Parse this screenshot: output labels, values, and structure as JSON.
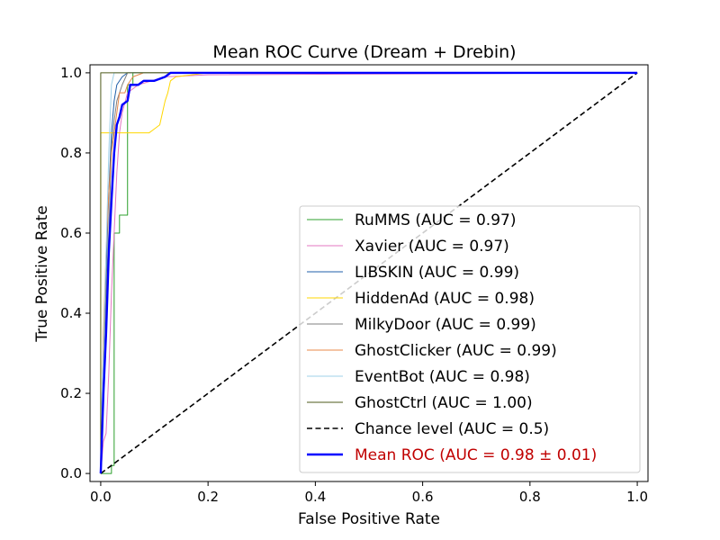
{
  "chart_data": {
    "type": "line",
    "title": "Mean ROC Curve (Dream + Drebin)",
    "xlabel": "False Positive Rate",
    "ylabel": "True Positive Rate",
    "xlim": [
      -0.02,
      1.02
    ],
    "ylim": [
      -0.02,
      1.02
    ],
    "xticks": [
      "0.0",
      "0.2",
      "0.4",
      "0.6",
      "0.8",
      "1.0"
    ],
    "yticks": [
      "0.0",
      "0.2",
      "0.4",
      "0.6",
      "0.8",
      "1.0"
    ],
    "grid": false,
    "legend_position": "lower-right",
    "series": [
      {
        "name": "RuMMS (AUC = 0.97)",
        "color": "#2ca02c",
        "width": 1,
        "style": "solid",
        "points": [
          [
            0,
            0
          ],
          [
            0.02,
            0
          ],
          [
            0.02,
            0.02
          ],
          [
            0.025,
            0.02
          ],
          [
            0.025,
            0.6
          ],
          [
            0.035,
            0.6
          ],
          [
            0.035,
            0.645
          ],
          [
            0.05,
            0.645
          ],
          [
            0.05,
            0.97
          ],
          [
            0.06,
            0.97
          ],
          [
            0.06,
            1.0
          ],
          [
            1.0,
            1.0
          ]
        ]
      },
      {
        "name": "Xavier (AUC = 0.97)",
        "color": "#e377c2",
        "width": 1,
        "style": "solid",
        "points": [
          [
            0,
            0
          ],
          [
            0.005,
            0.08
          ],
          [
            0.01,
            0.1
          ],
          [
            0.015,
            0.25
          ],
          [
            0.02,
            0.45
          ],
          [
            0.025,
            0.6
          ],
          [
            0.03,
            0.75
          ],
          [
            0.035,
            0.85
          ],
          [
            0.04,
            0.9
          ],
          [
            0.05,
            0.95
          ],
          [
            0.07,
            0.97
          ],
          [
            0.12,
            0.99
          ],
          [
            0.2,
            0.995
          ],
          [
            1.0,
            1.0
          ]
        ]
      },
      {
        "name": "LIBSKIN (AUC = 0.99)",
        "color": "#1f5fa8",
        "width": 1,
        "style": "solid",
        "points": [
          [
            0,
            0
          ],
          [
            0.005,
            0.3
          ],
          [
            0.01,
            0.5
          ],
          [
            0.015,
            0.7
          ],
          [
            0.02,
            0.85
          ],
          [
            0.025,
            0.93
          ],
          [
            0.03,
            0.97
          ],
          [
            0.04,
            0.99
          ],
          [
            0.05,
            1.0
          ],
          [
            1.0,
            1.0
          ]
        ]
      },
      {
        "name": "HiddenAd (AUC = 0.98)",
        "color": "#ffd700",
        "width": 1,
        "style": "solid",
        "points": [
          [
            0,
            0
          ],
          [
            0,
            0.85
          ],
          [
            0.09,
            0.85
          ],
          [
            0.1,
            0.86
          ],
          [
            0.11,
            0.87
          ],
          [
            0.115,
            0.9
          ],
          [
            0.12,
            0.93
          ],
          [
            0.125,
            0.95
          ],
          [
            0.13,
            0.98
          ],
          [
            0.14,
            0.99
          ],
          [
            0.2,
            1.0
          ],
          [
            1.0,
            1.0
          ]
        ]
      },
      {
        "name": "MilkyDoor (AUC = 0.99)",
        "color": "#7f7f7f",
        "width": 1,
        "style": "solid",
        "points": [
          [
            0,
            0
          ],
          [
            0.005,
            0.2
          ],
          [
            0.01,
            0.45
          ],
          [
            0.015,
            0.6
          ],
          [
            0.02,
            0.81
          ],
          [
            0.025,
            0.88
          ],
          [
            0.03,
            0.93
          ],
          [
            0.04,
            0.97
          ],
          [
            0.05,
            1.0
          ],
          [
            1.0,
            1.0
          ]
        ]
      },
      {
        "name": "GhostClicker (AUC = 0.99)",
        "color": "#e8894a",
        "width": 1,
        "style": "solid",
        "points": [
          [
            0,
            0
          ],
          [
            0.005,
            0.35
          ],
          [
            0.01,
            0.55
          ],
          [
            0.015,
            0.7
          ],
          [
            0.02,
            0.8
          ],
          [
            0.03,
            0.9
          ],
          [
            0.035,
            0.95
          ],
          [
            0.045,
            0.95
          ],
          [
            0.05,
            0.97
          ],
          [
            0.06,
            0.99
          ],
          [
            0.08,
            1.0
          ],
          [
            1.0,
            1.0
          ]
        ]
      },
      {
        "name": "EventBot (AUC = 0.98)",
        "color": "#9fd0e8",
        "width": 1,
        "style": "solid",
        "points": [
          [
            0,
            0
          ],
          [
            0,
            0.1
          ],
          [
            0.005,
            0.3
          ],
          [
            0.01,
            0.55
          ],
          [
            0.015,
            0.8
          ],
          [
            0.02,
            0.97
          ],
          [
            0.025,
            1.0
          ],
          [
            1.0,
            1.0
          ]
        ]
      },
      {
        "name": "GhostCtrl (AUC = 1.00)",
        "color": "#4d5a1a",
        "width": 1,
        "style": "solid",
        "points": [
          [
            0,
            0
          ],
          [
            0,
            1.0
          ],
          [
            1.0,
            1.0
          ]
        ]
      },
      {
        "name": "Chance level (AUC = 0.5)",
        "color": "#000000",
        "width": 1.6,
        "style": "dashed",
        "points": [
          [
            0,
            0
          ],
          [
            1.0,
            1.0
          ]
        ]
      },
      {
        "name": "Mean ROC (AUC = 0.98 ± 0.01)",
        "color": "#0000ff",
        "width": 2.4,
        "style": "solid",
        "label_color": "#c00000",
        "points": [
          [
            0,
            0
          ],
          [
            0.005,
            0.2
          ],
          [
            0.01,
            0.35
          ],
          [
            0.015,
            0.55
          ],
          [
            0.02,
            0.68
          ],
          [
            0.025,
            0.8
          ],
          [
            0.03,
            0.87
          ],
          [
            0.035,
            0.89
          ],
          [
            0.04,
            0.92
          ],
          [
            0.05,
            0.93
          ],
          [
            0.055,
            0.97
          ],
          [
            0.07,
            0.97
          ],
          [
            0.08,
            0.98
          ],
          [
            0.1,
            0.98
          ],
          [
            0.12,
            0.99
          ],
          [
            0.13,
            1.0
          ],
          [
            1.0,
            1.0
          ]
        ]
      }
    ]
  }
}
